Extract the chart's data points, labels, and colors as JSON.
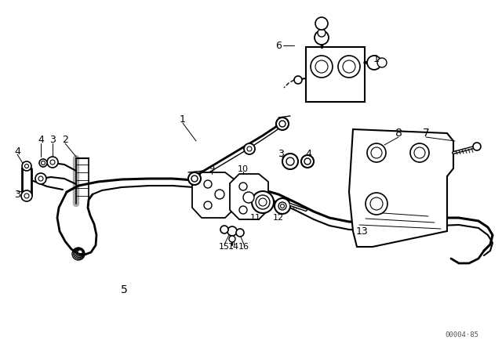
{
  "bg_color": "#ffffff",
  "line_color": "#000000",
  "watermark": "00004·85"
}
